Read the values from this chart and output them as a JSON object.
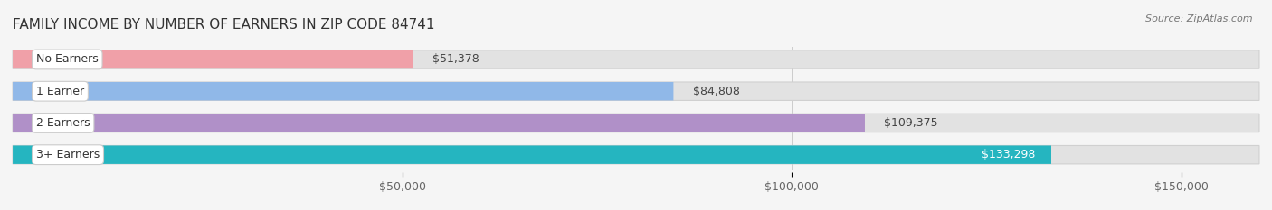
{
  "title": "FAMILY INCOME BY NUMBER OF EARNERS IN ZIP CODE 84741",
  "source": "Source: ZipAtlas.com",
  "categories": [
    "No Earners",
    "1 Earner",
    "2 Earners",
    "3+ Earners"
  ],
  "values": [
    51378,
    84808,
    109375,
    133298
  ],
  "labels": [
    "$51,378",
    "$84,808",
    "$109,375",
    "$133,298"
  ],
  "bar_colors": [
    "#f0a0a8",
    "#90b8e8",
    "#b090c8",
    "#25b5c0"
  ],
  "label_text_colors": [
    "#555555",
    "#555555",
    "#555555",
    "#ffffff"
  ],
  "bg_color": "#f5f5f5",
  "bar_bg_color": "#e2e2e2",
  "bar_bg_edge_color": "#d0d0d0",
  "data_max": 160000,
  "xticks": [
    50000,
    100000,
    150000
  ],
  "xticklabels": [
    "$50,000",
    "$100,000",
    "$150,000"
  ],
  "title_fontsize": 11,
  "source_fontsize": 8,
  "label_fontsize": 9,
  "cat_fontsize": 9,
  "tick_fontsize": 9
}
